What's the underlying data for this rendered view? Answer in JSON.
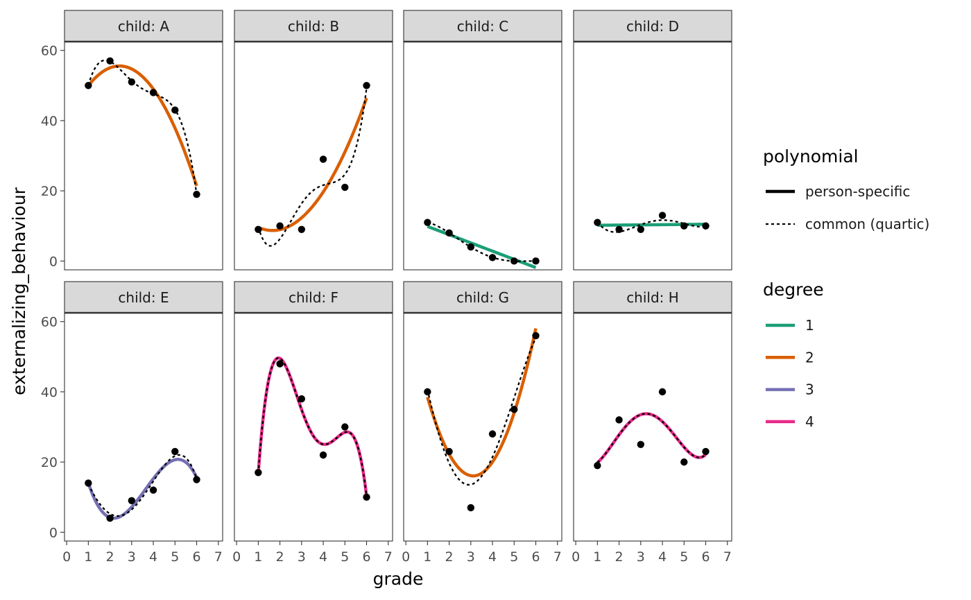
{
  "chart_data": {
    "type": "line",
    "facet_label_prefix": "child: ",
    "xlabel": "grade",
    "ylabel": "externalizing_behaviour",
    "xlim": [
      -0.1,
      7.2
    ],
    "ylim": [
      -2.5,
      62.5
    ],
    "x_ticks": [
      0,
      1,
      2,
      3,
      4,
      5,
      6,
      7
    ],
    "y_ticks": [
      0,
      20,
      40,
      60
    ],
    "grid": false,
    "legend_placement": "right",
    "legend": {
      "polynomial": {
        "title": "polynomial",
        "items": [
          {
            "label": "person-specific",
            "style": "solid"
          },
          {
            "label": "common (quartic)",
            "style": "dotted"
          }
        ]
      },
      "degree": {
        "title": "degree",
        "items": [
          {
            "label": "1",
            "color": "#1b9e77"
          },
          {
            "label": "2",
            "color": "#d95f02"
          },
          {
            "label": "3",
            "color": "#7570b3"
          },
          {
            "label": "4",
            "color": "#e7298a"
          }
        ]
      }
    },
    "panels": [
      {
        "child": "A",
        "degree": 2,
        "x": [
          1,
          2,
          3,
          4,
          5,
          6
        ],
        "y": [
          50,
          57,
          51,
          48,
          43,
          19
        ]
      },
      {
        "child": "B",
        "degree": 2,
        "x": [
          1,
          2,
          3,
          4,
          5,
          6
        ],
        "y": [
          9,
          10,
          9,
          29,
          21,
          50
        ]
      },
      {
        "child": "C",
        "degree": 1,
        "x": [
          1,
          2,
          3,
          4,
          5,
          6
        ],
        "y": [
          11,
          8,
          4,
          1,
          0,
          0
        ]
      },
      {
        "child": "D",
        "degree": 1,
        "x": [
          1,
          2,
          3,
          4,
          5,
          6
        ],
        "y": [
          11,
          9,
          9,
          13,
          10,
          10
        ]
      },
      {
        "child": "E",
        "degree": 3,
        "x": [
          1,
          2,
          3,
          4,
          5,
          6
        ],
        "y": [
          14,
          4,
          9,
          12,
          23,
          15
        ]
      },
      {
        "child": "F",
        "degree": 4,
        "x": [
          1,
          2,
          3,
          4,
          5,
          6
        ],
        "y": [
          17,
          48,
          38,
          22,
          30,
          10
        ]
      },
      {
        "child": "G",
        "degree": 2,
        "x": [
          1,
          2,
          3,
          4,
          5,
          6
        ],
        "y": [
          40,
          23,
          7,
          28,
          35,
          56
        ]
      },
      {
        "child": "H",
        "degree": 4,
        "x": [
          1,
          2,
          3,
          4,
          5,
          6
        ],
        "y": [
          19,
          32,
          25,
          40,
          20,
          23
        ]
      }
    ]
  }
}
